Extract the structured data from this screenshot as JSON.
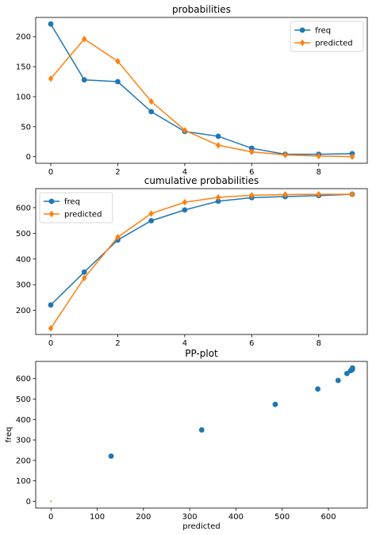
{
  "chart_data": [
    {
      "type": "line",
      "title": "probabilities",
      "x": [
        0,
        1,
        2,
        3,
        4,
        5,
        6,
        7,
        8,
        9
      ],
      "xlim": [
        -0.45,
        9.45
      ],
      "ylim": [
        -11,
        232
      ],
      "xticks": [
        0,
        2,
        4,
        6,
        8
      ],
      "yticks": [
        0,
        50,
        100,
        150,
        200
      ],
      "legend": "top-right",
      "series": [
        {
          "name": "freq",
          "marker": "circle",
          "color": "#1f77b4",
          "values": [
            221,
            128,
            125,
            75,
            42,
            34,
            14,
            4,
            4,
            5
          ]
        },
        {
          "name": "predicted",
          "marker": "diamond",
          "color": "#ff7f0e",
          "values": [
            130,
            196,
            159,
            92,
            44,
            19,
            8,
            3,
            1,
            0
          ]
        }
      ]
    },
    {
      "type": "line",
      "title": "cumulative probabilities",
      "x": [
        0,
        1,
        2,
        3,
        4,
        5,
        6,
        7,
        8,
        9
      ],
      "xlim": [
        -0.45,
        9.45
      ],
      "ylim": [
        106,
        674
      ],
      "xticks": [
        0,
        2,
        4,
        6,
        8
      ],
      "yticks": [
        200,
        300,
        400,
        500,
        600
      ],
      "legend": "top-left",
      "series": [
        {
          "name": "freq",
          "marker": "circle",
          "color": "#1f77b4",
          "values": [
            221,
            349,
            474,
            549,
            591,
            625,
            639,
            643,
            647,
            652
          ]
        },
        {
          "name": "predicted",
          "marker": "diamond",
          "color": "#ff7f0e",
          "values": [
            130,
            326,
            485,
            577,
            621,
            640,
            648,
            651,
            652,
            652
          ]
        }
      ]
    },
    {
      "type": "scatter",
      "title": "PP-plot",
      "xlabel": "predicted",
      "ylabel": "freq",
      "xlim": [
        -33,
        684
      ],
      "ylim": [
        -33,
        684
      ],
      "xticks": [
        0,
        100,
        200,
        300,
        400,
        500,
        600
      ],
      "yticks": [
        0,
        100,
        200,
        300,
        400,
        500,
        600
      ],
      "reference_point": {
        "x": 0,
        "y": 0,
        "color": "#ff7f0e"
      },
      "series": [
        {
          "color": "#1f77b4",
          "x": [
            130,
            326,
            485,
            577,
            621,
            640,
            648,
            651,
            652,
            652
          ],
          "y": [
            221,
            349,
            474,
            549,
            591,
            625,
            639,
            643,
            647,
            652
          ]
        }
      ]
    }
  ]
}
